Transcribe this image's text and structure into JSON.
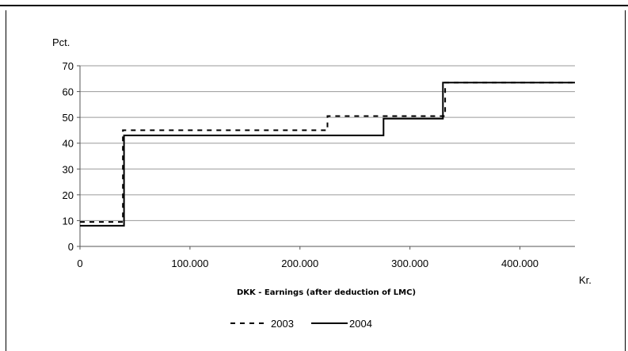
{
  "chart_data": {
    "type": "line",
    "ylabel": "Pct.",
    "xlabel": "DKK - Earnings (after deduction of LMC)",
    "x_unit": "Kr.",
    "xlim": [
      0,
      450000
    ],
    "ylim": [
      0,
      70
    ],
    "x_ticks": [
      0,
      100000,
      200000,
      300000,
      400000
    ],
    "x_tick_labels": [
      "0",
      "100.000",
      "200.000",
      "300.000",
      "400.000"
    ],
    "y_ticks": [
      0,
      10,
      20,
      30,
      40,
      50,
      60,
      70
    ],
    "y_tick_labels": [
      "0",
      "10",
      "20",
      "30",
      "40",
      "50",
      "60",
      "70"
    ],
    "grid": "horizontal",
    "legend_position": "bottom",
    "series": [
      {
        "name": "2003",
        "style": "dashed",
        "color": "#000000",
        "x": [
          0,
          39000,
          39000,
          225000,
          225000,
          332000,
          332000,
          450000
        ],
        "y": [
          9.5,
          9.5,
          45,
          45,
          50.5,
          50.5,
          63.5,
          63.5
        ]
      },
      {
        "name": "2004",
        "style": "solid",
        "color": "#000000",
        "x": [
          0,
          40000,
          40000,
          276000,
          276000,
          330000,
          330000,
          450000
        ],
        "y": [
          8,
          8,
          43,
          43,
          49.5,
          49.5,
          63.5,
          63.5
        ]
      }
    ]
  },
  "legend": {
    "series_2003": "2003",
    "series_2004": "2004"
  }
}
